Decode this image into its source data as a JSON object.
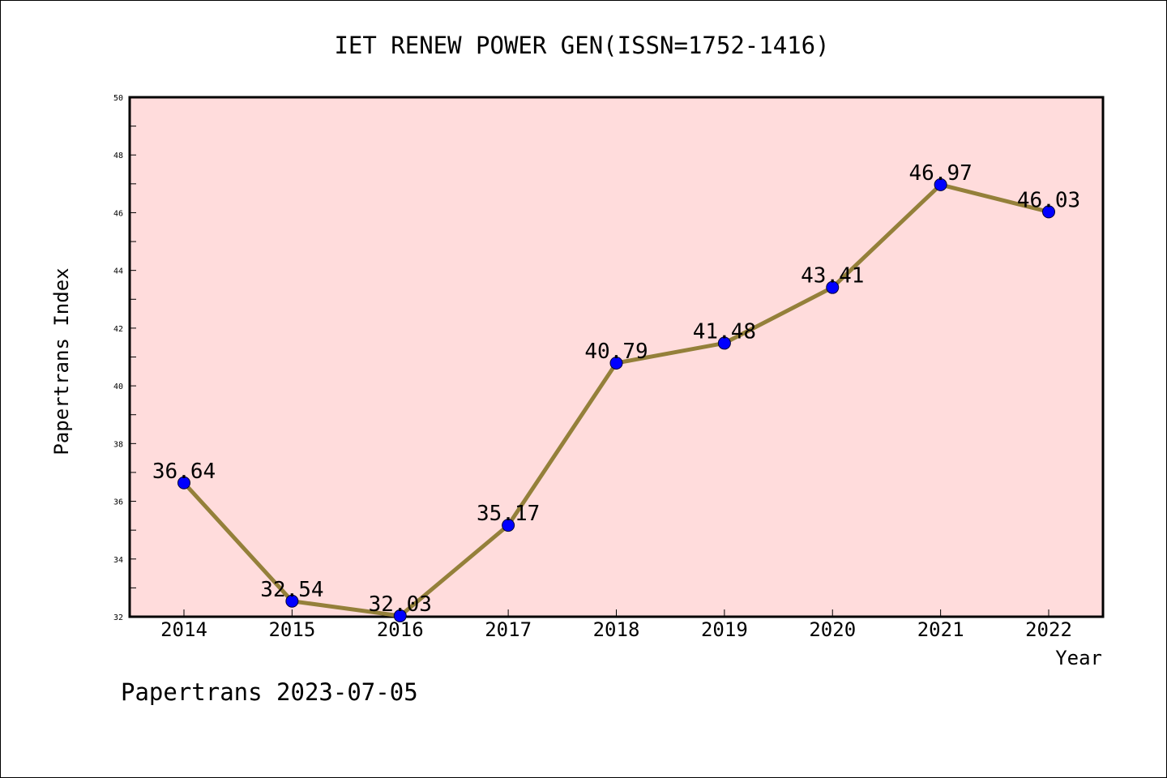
{
  "chart_data": {
    "type": "line",
    "title": "IET RENEW POWER GEN(ISSN=1752-1416)",
    "xlabel": "Year",
    "ylabel": "Papertrans Index",
    "categories": [
      "2014",
      "2015",
      "2016",
      "2017",
      "2018",
      "2019",
      "2020",
      "2021",
      "2022"
    ],
    "values": [
      36.64,
      32.54,
      32.03,
      35.17,
      40.79,
      41.48,
      43.41,
      46.97,
      46.03
    ],
    "data_labels": [
      "36.64",
      "32.54",
      "32.03",
      "35.17",
      "40.79",
      "41.48",
      "43.41",
      "46.97",
      "46.03"
    ],
    "ylim": [
      32,
      50
    ],
    "yticks": [
      "32",
      "34",
      "36",
      "38",
      "40",
      "42",
      "44",
      "46",
      "48",
      "50"
    ],
    "grid": false,
    "colors": {
      "plot_background": "#ffdcdc",
      "line": "#94803a",
      "marker": "#0000ff"
    }
  },
  "footer": "Papertrans 2023-07-05"
}
